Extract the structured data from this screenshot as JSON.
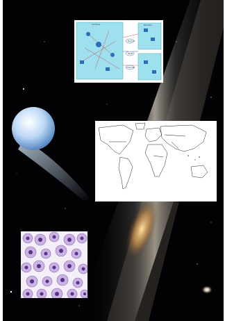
{
  "colors": {
    "space": "#020205",
    "planet": "#bcd8f5",
    "network_panel": "#9fe0ef",
    "cell_stain": "#8a62b4"
  },
  "icons": [
    "planet-icon",
    "comet-tail-icon",
    "galaxy-band-icon",
    "spiral-galaxy-icon"
  ],
  "network_diagram": {
    "labels": [
      "Branch",
      "WAN",
      "Internet",
      "Campus",
      "Remote"
    ]
  },
  "world_map": {
    "caption": ""
  }
}
